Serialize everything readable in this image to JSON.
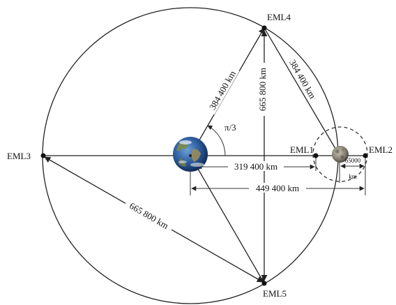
{
  "points": {
    "eml1": "EML1",
    "eml2": "EML2",
    "eml3": "EML3",
    "eml4": "EML4",
    "eml5": "EML5"
  },
  "dimensions": {
    "earth_eml4": "384 400 km",
    "eml4_moon": "384 400 km",
    "eml4_eml5": "665 800 km",
    "eml3_eml5": "665 800 km",
    "earth_eml1": "319 400 km",
    "earth_eml2": "449 400 km",
    "moon_eml2_num": "65000",
    "moon_eml2_unit": "km"
  },
  "angle": "π/3",
  "colors": {
    "line": "#222222",
    "earth_ocean": "#2d5e9e",
    "moon": "#8a8478"
  }
}
